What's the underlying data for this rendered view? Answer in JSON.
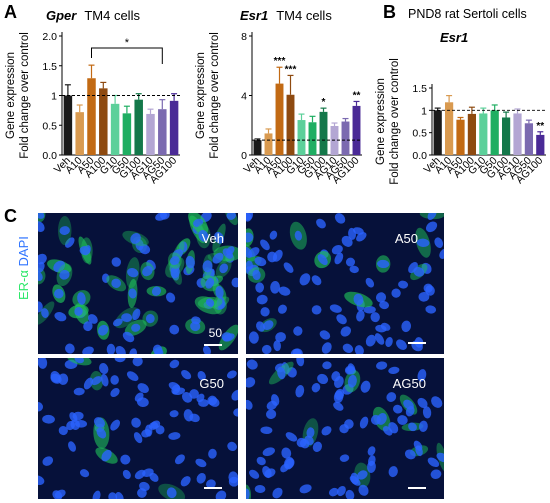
{
  "panels": {
    "A": "A",
    "B": "B",
    "C": "C"
  },
  "colors": {
    "Veh": "#1a1a1a",
    "A10": "#d99a50",
    "A50": "#c26a14",
    "A100": "#8e4a10",
    "G10": "#5cd09a",
    "G50": "#1fae62",
    "G100": "#14784a",
    "AG10": "#b3a6d3",
    "AG50": "#7b6ab0",
    "AG100": "#4a2a96"
  },
  "chart_data": [
    {
      "type": "bar",
      "gene": "Gper",
      "title_rest": "TM4 cells",
      "ylabel": [
        "Gene expression",
        "Fold change over control"
      ],
      "categories": [
        "Veh",
        "A10",
        "A50",
        "A100",
        "G10",
        "G50",
        "G100",
        "AG10",
        "AG50",
        "AG100"
      ],
      "values": [
        1.0,
        0.72,
        1.29,
        1.12,
        0.86,
        0.7,
        0.93,
        0.69,
        0.77,
        0.91
      ],
      "errors": [
        0.18,
        0.12,
        0.22,
        0.1,
        0.14,
        0.12,
        0.1,
        0.08,
        0.16,
        0.12
      ],
      "ylim": [
        0,
        2.0
      ],
      "yticks": [
        0,
        0.5,
        1,
        1.5,
        2.0
      ],
      "ytick_labels": [
        "0.0",
        "0.5",
        "1",
        "1.5",
        "2.0"
      ],
      "reference_line": 1,
      "significance_bracket": {
        "from": "A50",
        "to": "AG50",
        "label": "*"
      },
      "stars": []
    },
    {
      "type": "bar",
      "gene": "Esr1",
      "title_rest": "TM4 cells",
      "ylabel": [
        "Gene expression",
        "Fold change over control"
      ],
      "categories": [
        "Veh",
        "A10",
        "A50",
        "A100",
        "G10",
        "G50",
        "G100",
        "AG10",
        "AG50",
        "AG100"
      ],
      "values": [
        1.0,
        1.45,
        4.8,
        4.05,
        2.35,
        2.2,
        2.9,
        1.95,
        2.25,
        3.3
      ],
      "errors": [
        0.08,
        0.3,
        1.1,
        1.3,
        0.4,
        0.4,
        0.25,
        0.2,
        0.2,
        0.3
      ],
      "ylim": [
        0,
        8
      ],
      "yticks": [
        0,
        4,
        8
      ],
      "ytick_labels": [
        "0",
        "4",
        "8"
      ],
      "reference_line": 1,
      "significance_bracket": null,
      "stars": [
        "",
        "",
        "***",
        "***",
        "",
        "",
        "*",
        "",
        "",
        "**"
      ]
    },
    {
      "type": "bar",
      "gene": "Esr1",
      "title_rest": "",
      "ylabel": [
        "Gene expression",
        "Fold change over control"
      ],
      "categories": [
        "Veh",
        "A10",
        "A50",
        "A100",
        "G10",
        "G50",
        "G100",
        "AG10",
        "AG50",
        "AG100"
      ],
      "values": [
        1.0,
        1.18,
        0.79,
        0.92,
        0.93,
        1.0,
        0.84,
        0.93,
        0.71,
        0.45
      ],
      "errors": [
        0.05,
        0.15,
        0.05,
        0.15,
        0.12,
        0.12,
        0.12,
        0.1,
        0.07,
        0.07
      ],
      "ylim": [
        0,
        1.5
      ],
      "yticks": [
        0,
        0.5,
        1,
        1.5
      ],
      "ytick_labels": [
        "0.0",
        "0.5",
        "1",
        "1.5"
      ],
      "reference_line": 1,
      "significance_bracket": null,
      "stars": [
        "",
        "",
        "",
        "",
        "",
        "",
        "",
        "",
        "",
        "**"
      ]
    }
  ],
  "panelB_header": "PND8 rat Sertoli cells",
  "micrographs": {
    "stain_ER": "ER-α",
    "stain_DAPI": "DAPI",
    "labels": [
      "Veh",
      "A50",
      "G50",
      "AG50"
    ],
    "scale_bar_text": "50"
  }
}
